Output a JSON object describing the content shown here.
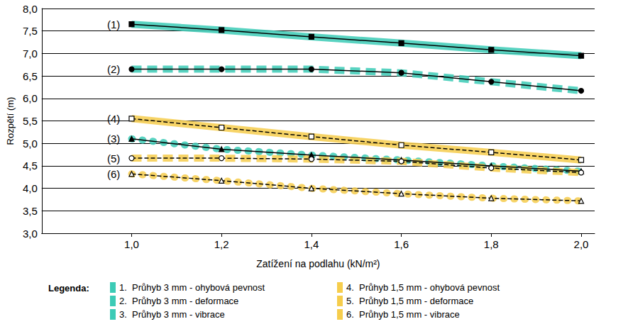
{
  "chart_data": {
    "type": "line",
    "x_label": "Zatížení na podlahu (kN/m²)",
    "y_label": "Rozpětí (m)",
    "x": [
      1.0,
      1.2,
      1.4,
      1.6,
      1.8,
      2.0
    ],
    "xlim": [
      0.8,
      2.03
    ],
    "xticks": [
      {
        "value": 1.0,
        "label": "1,0"
      },
      {
        "value": 1.2,
        "label": "1,2"
      },
      {
        "value": 1.4,
        "label": "1,4"
      },
      {
        "value": 1.6,
        "label": "1,6"
      },
      {
        "value": 1.8,
        "label": "1,8"
      },
      {
        "value": 2.0,
        "label": "2,0"
      }
    ],
    "ylim": [
      3.0,
      8.0
    ],
    "yticks": [
      {
        "value": 3.0,
        "label": "3,0"
      },
      {
        "value": 3.5,
        "label": "3,5"
      },
      {
        "value": 4.0,
        "label": "4,0"
      },
      {
        "value": 4.5,
        "label": "4,5"
      },
      {
        "value": 5.0,
        "label": "5,0"
      },
      {
        "value": 5.5,
        "label": "5,5"
      },
      {
        "value": 6.0,
        "label": "6,0"
      },
      {
        "value": 6.5,
        "label": "6,5"
      },
      {
        "value": 7.0,
        "label": "7,0"
      },
      {
        "value": 7.5,
        "label": "7,5"
      },
      {
        "value": 8.0,
        "label": "8,0"
      }
    ],
    "grid": true,
    "legend": "bottom",
    "legend_title": "Legenda:",
    "series": [
      {
        "name": "1.  Průhyb 3 mm - ohybová pevnost",
        "annotation": "(1)",
        "color": "#3ccbb6",
        "line_style": "solid",
        "marker": "rect",
        "values": [
          7.65,
          7.52,
          7.37,
          7.23,
          7.08,
          6.95
        ]
      },
      {
        "name": "2.  Průhyb 3 mm - deformace",
        "annotation": "(2)",
        "color": "#3ccbb6",
        "line_style": "dashed",
        "marker": "circle",
        "values": [
          6.65,
          6.65,
          6.65,
          6.57,
          6.37,
          6.17
        ]
      },
      {
        "name": "3.  Průhyb 3 mm - vibrace",
        "annotation": "(3)",
        "color": "#3ccbb6",
        "line_style": "dotted",
        "marker": "triangle",
        "values": [
          5.1,
          4.87,
          4.74,
          4.63,
          4.5,
          4.38
        ]
      },
      {
        "name": "4.  Průhyb 1,5 mm - ohybová pevnost",
        "annotation": "(4)",
        "color": "#f6cd4c",
        "line_style": "solid",
        "marker": "emptyRect",
        "values": [
          5.55,
          5.35,
          5.15,
          4.96,
          4.8,
          4.63
        ]
      },
      {
        "name": "5.  Průhyb 1,5 mm - deformace",
        "annotation": "(5)",
        "color": "#f6cd4c",
        "line_style": "dashed",
        "marker": "emptyCircle",
        "values": [
          4.67,
          4.67,
          4.65,
          4.6,
          4.45,
          4.35
        ]
      },
      {
        "name": "6.  Průhyb 1,5 mm - vibrace",
        "annotation": "(6)",
        "color": "#f6cd4c",
        "line_style": "dotted",
        "marker": "emptyTriangle",
        "values": [
          4.32,
          4.17,
          4.0,
          3.88,
          3.78,
          3.72
        ]
      }
    ]
  }
}
